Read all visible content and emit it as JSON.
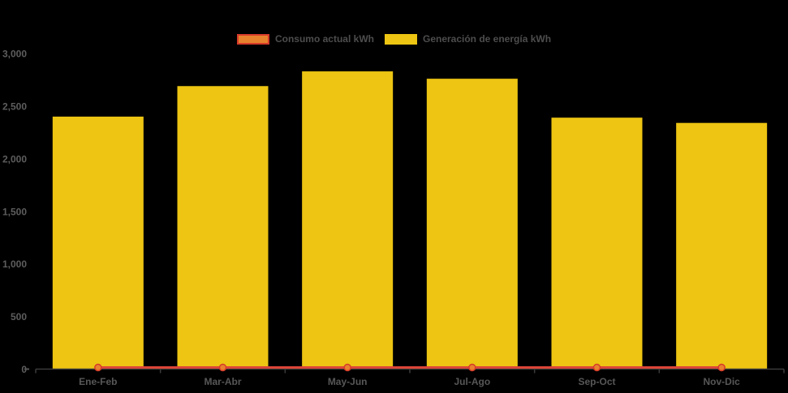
{
  "page": {
    "background": "#000000"
  },
  "legend": {
    "items": [
      {
        "label": "Consumo actual kWh",
        "swatch_fill": "#e8822d",
        "swatch_border": "#d63a2a"
      },
      {
        "label": "Generación de energía kWh",
        "swatch_fill": "#edc512",
        "swatch_border": "#edc512"
      }
    ]
  },
  "chart_data": {
    "type": "bar",
    "title": "",
    "xlabel": "",
    "ylabel": "",
    "categories": [
      "Ene-Feb",
      "Mar-Abr",
      "May-Jun",
      "Jul-Ago",
      "Sep-Oct",
      "Nov-Dic"
    ],
    "series": [
      {
        "name": "Generación de energía kWh",
        "type": "bar",
        "color": "#edc512",
        "values": [
          2400,
          2690,
          2830,
          2760,
          2390,
          2340
        ]
      },
      {
        "name": "Consumo actual kWh",
        "type": "line",
        "line_color": "#dc4638",
        "marker_fill": "#e8822d",
        "marker_stroke": "#d63a2a",
        "values": [
          15,
          15,
          15,
          15,
          15,
          15
        ]
      }
    ],
    "ylim": [
      0,
      3000
    ],
    "ytick_labels": [
      "0",
      "500",
      "1,000",
      "1,500",
      "2,000",
      "2,500",
      "3,000"
    ],
    "grid": false,
    "legend_position": "top",
    "axis_color": "#3b3b3b",
    "ytick_label_color": "#5d5d5d",
    "xtick_label_color": "#575757"
  }
}
